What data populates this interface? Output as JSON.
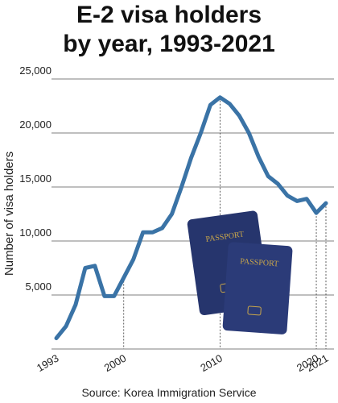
{
  "chart_data": {
    "type": "line",
    "title": "E-2 visa holders",
    "subtitle": "by year, 1993-2021",
    "y_label": "Number of visa holders",
    "source": "Source: Korea Immigration Service",
    "annotations": [
      "PASSPORT",
      "PASSPORT"
    ],
    "x": [
      1993,
      1994,
      1995,
      1996,
      1997,
      1998,
      1999,
      2000,
      2001,
      2002,
      2003,
      2004,
      2005,
      2006,
      2007,
      2008,
      2009,
      2010,
      2011,
      2012,
      2013,
      2014,
      2015,
      2016,
      2017,
      2018,
      2019,
      2020,
      2021
    ],
    "series": [
      {
        "name": "E-2 visa holders",
        "color": "#3a73a6",
        "values": [
          1000,
          2100,
          4100,
          7500,
          7700,
          4900,
          4900,
          6600,
          8300,
          10800,
          10800,
          11200,
          12500,
          15000,
          17700,
          20000,
          22600,
          23300,
          22700,
          21600,
          20000,
          17800,
          16000,
          15300,
          14200,
          13700,
          13900,
          12600,
          13500
        ]
      }
    ],
    "xlim": [
      1993,
      2021
    ],
    "xticks": [
      1993,
      2000,
      2010,
      2020,
      2021
    ],
    "ylim": [
      0,
      25000
    ],
    "yticks": [
      {
        "value": 5000,
        "label": "5,000"
      },
      {
        "value": 10000,
        "label": "10,000"
      },
      {
        "value": 15000,
        "label": "15,000"
      },
      {
        "value": 20000,
        "label": "20,000"
      },
      {
        "value": 25000,
        "label": "25,000"
      }
    ],
    "grid": true
  }
}
